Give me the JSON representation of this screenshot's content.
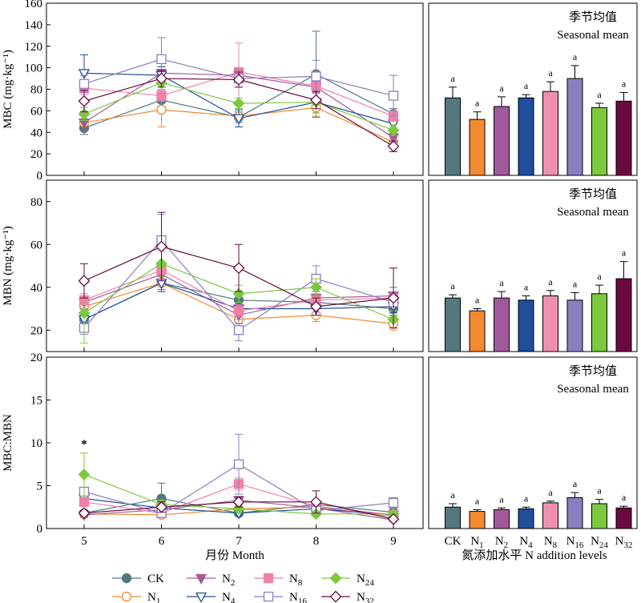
{
  "chart_data": {
    "type": "line",
    "panel_label_cn": "季节均值",
    "panel_label_en": "Seasonal mean",
    "xlabel_left": "月份 Month",
    "xlabel_right": "氮添加水平 N addition levels",
    "months": [
      "5",
      "6",
      "7",
      "8",
      "9"
    ],
    "bar_categories": [
      {
        "base": "CK",
        "sub": ""
      },
      {
        "base": "N",
        "sub": "1"
      },
      {
        "base": "N",
        "sub": "2"
      },
      {
        "base": "N",
        "sub": "4"
      },
      {
        "base": "N",
        "sub": "8"
      },
      {
        "base": "N",
        "sub": "16"
      },
      {
        "base": "N",
        "sub": "24"
      },
      {
        "base": "N",
        "sub": "32"
      }
    ],
    "bar_colors": [
      "#537880",
      "#f28a30",
      "#a05a9c",
      "#1f4e9c",
      "#f090b0",
      "#8a7ec0",
      "#7cc940",
      "#6b0a3e"
    ],
    "series_styles": [
      {
        "base": "CK",
        "sub": "",
        "color": "#4d7a82",
        "marker": "circle",
        "filled": true
      },
      {
        "base": "N",
        "sub": "1",
        "color": "#f28a30",
        "marker": "circle",
        "filled": false
      },
      {
        "base": "N",
        "sub": "2",
        "color": "#a05a9c",
        "marker": "tri-down",
        "filled": true
      },
      {
        "base": "N",
        "sub": "4",
        "color": "#1f4e9c",
        "marker": "tri-down",
        "filled": false
      },
      {
        "base": "N",
        "sub": "8",
        "color": "#f080a8",
        "marker": "square",
        "filled": true
      },
      {
        "base": "N",
        "sub": "16",
        "color": "#8a7ec0",
        "marker": "square",
        "filled": false
      },
      {
        "base": "N",
        "sub": "24",
        "color": "#7cc940",
        "marker": "diamond",
        "filled": true
      },
      {
        "base": "N",
        "sub": "32",
        "color": "#6b0a3e",
        "marker": "diamond",
        "filled": false
      }
    ],
    "rows": [
      {
        "ylabel": "MBC (mg·kg⁻¹)",
        "ylim": [
          0,
          160
        ],
        "yticks": [
          "0",
          "20",
          "40",
          "60",
          "80",
          "100",
          "120",
          "140",
          "160"
        ],
        "series": [
          {
            "values": [
              44,
              70,
              54,
              94,
              57
            ],
            "err": [
              6,
              6,
              5,
              40,
              5
            ]
          },
          {
            "values": [
              49,
              61,
              55,
              63,
              31
            ],
            "err": [
              7,
              16,
              10,
              8,
              5
            ]
          },
          {
            "values": [
              49,
              95,
              93,
              82,
              35
            ],
            "err": [
              7,
              6,
              6,
              6,
              4
            ]
          },
          {
            "values": [
              95,
              93,
              53,
              68,
              48
            ],
            "err": [
              17,
              8,
              8,
              10,
              6
            ]
          },
          {
            "values": [
              81,
              74,
              96,
              83,
              55
            ],
            "err": [
              6,
              5,
              27,
              6,
              5
            ]
          },
          {
            "values": [
              85,
              108,
              90,
              92,
              74
            ],
            "err": [
              8,
              20,
              8,
              15,
              19
            ]
          },
          {
            "values": [
              57,
              86,
              67,
              68,
              42
            ],
            "err": [
              6,
              6,
              5,
              10,
              5
            ]
          },
          {
            "values": [
              69,
              90,
              89,
              70,
              27
            ],
            "err": [
              10,
              8,
              7,
              8,
              5
            ]
          }
        ],
        "bars": [
          72,
          52,
          64,
          72,
          78,
          90,
          63,
          69
        ],
        "bar_err": [
          10,
          7,
          9,
          3,
          9,
          12,
          4,
          8
        ],
        "bar_sig": [
          "a",
          "a",
          "a",
          "a",
          "a",
          "a",
          "a",
          "a"
        ],
        "bar_ylim": [
          0,
          160
        ]
      },
      {
        "ylabel": "MBN (mg·kg⁻¹)",
        "ylim": [
          10,
          90
        ],
        "yticks": [
          "20",
          "40",
          "60",
          "80"
        ],
        "series": [
          {
            "values": [
              25,
              42,
              34,
              33,
              30
            ],
            "err": [
              3,
              3,
              3,
              3,
              3
            ]
          },
          {
            "values": [
              31,
              42,
              25,
              27,
              23
            ],
            "err": [
              4,
              4,
              3,
              3,
              3
            ]
          },
          {
            "values": [
              33,
              46,
              27,
              35,
              36
            ],
            "err": [
              3,
              4,
              4,
              3,
              4
            ]
          },
          {
            "values": [
              25,
              42,
              30,
              30,
              31
            ],
            "err": [
              3,
              4,
              3,
              3,
              3
            ]
          },
          {
            "values": [
              34,
              48,
              29,
              34,
              35
            ],
            "err": [
              3,
              4,
              3,
              3,
              3
            ]
          },
          {
            "values": [
              21,
              62,
              20,
              44,
              33
            ],
            "err": [
              3,
              12,
              5,
              6,
              4
            ]
          },
          {
            "values": [
              28,
              51,
              37,
              40,
              25
            ],
            "err": [
              14,
              6,
              4,
              4,
              4
            ]
          },
          {
            "values": [
              43,
              59,
              49,
              31,
              35
            ],
            "err": [
              8,
              16,
              11,
              4,
              14
            ]
          }
        ],
        "bars": [
          35,
          29,
          35,
          34,
          36,
          34,
          37,
          44
        ],
        "bar_err": [
          1.5,
          1,
          3,
          2,
          2.5,
          3.5,
          4,
          8
        ],
        "bar_sig": [
          "a",
          "a",
          "a",
          "a",
          "a",
          "a",
          "a",
          "a"
        ],
        "bar_ylim": [
          10,
          90
        ]
      },
      {
        "ylabel": "MBC:MBN",
        "ylim": [
          0,
          20
        ],
        "yticks": [
          "0",
          "5",
          "10",
          "15",
          "20"
        ],
        "annotation": {
          "text": "*",
          "month": "5"
        },
        "series": [
          {
            "values": [
              1.8,
              3.5,
              1.8,
              2.8,
              1.9
            ],
            "err": [
              0.3,
              1.8,
              0.3,
              0.4,
              0.3
            ]
          },
          {
            "values": [
              1.7,
              1.6,
              2.3,
              2.5,
              1.4
            ],
            "err": [
              0.3,
              0.3,
              0.4,
              0.3,
              0.2
            ]
          },
          {
            "values": [
              1.6,
              2.2,
              3.3,
              2.4,
              1.0
            ],
            "err": [
              0.3,
              0.3,
              0.4,
              0.3,
              0.2
            ]
          },
          {
            "values": [
              3.5,
              2.4,
              1.8,
              2.3,
              1.6
            ],
            "err": [
              0.6,
              0.4,
              0.3,
              0.3,
              0.3
            ]
          },
          {
            "values": [
              3.1,
              1.8,
              5.2,
              2.6,
              1.6
            ],
            "err": [
              0.4,
              0.3,
              0.7,
              0.3,
              0.3
            ]
          },
          {
            "values": [
              4.3,
              1.8,
              7.5,
              2.1,
              3.0
            ],
            "err": [
              0.5,
              0.4,
              3.5,
              0.4,
              0.6
            ]
          },
          {
            "values": [
              6.3,
              2.8,
              2.3,
              1.7,
              1.7
            ],
            "err": [
              2.5,
              0.5,
              0.4,
              0.3,
              0.3
            ]
          },
          {
            "values": [
              1.8,
              2.5,
              3.1,
              3.1,
              1.1
            ],
            "err": [
              0.3,
              0.6,
              0.6,
              1.3,
              0.2
            ]
          }
        ],
        "bars": [
          2.5,
          2.0,
          2.2,
          2.3,
          3.0,
          3.6,
          2.9,
          2.4
        ],
        "bar_err": [
          0.4,
          0.2,
          0.2,
          0.2,
          0.2,
          0.6,
          0.5,
          0.2
        ],
        "bar_sig": [
          "a",
          "a",
          "a",
          "a",
          "a",
          "a",
          "a",
          "a"
        ],
        "bar_ylim": [
          0,
          20
        ]
      }
    ]
  }
}
